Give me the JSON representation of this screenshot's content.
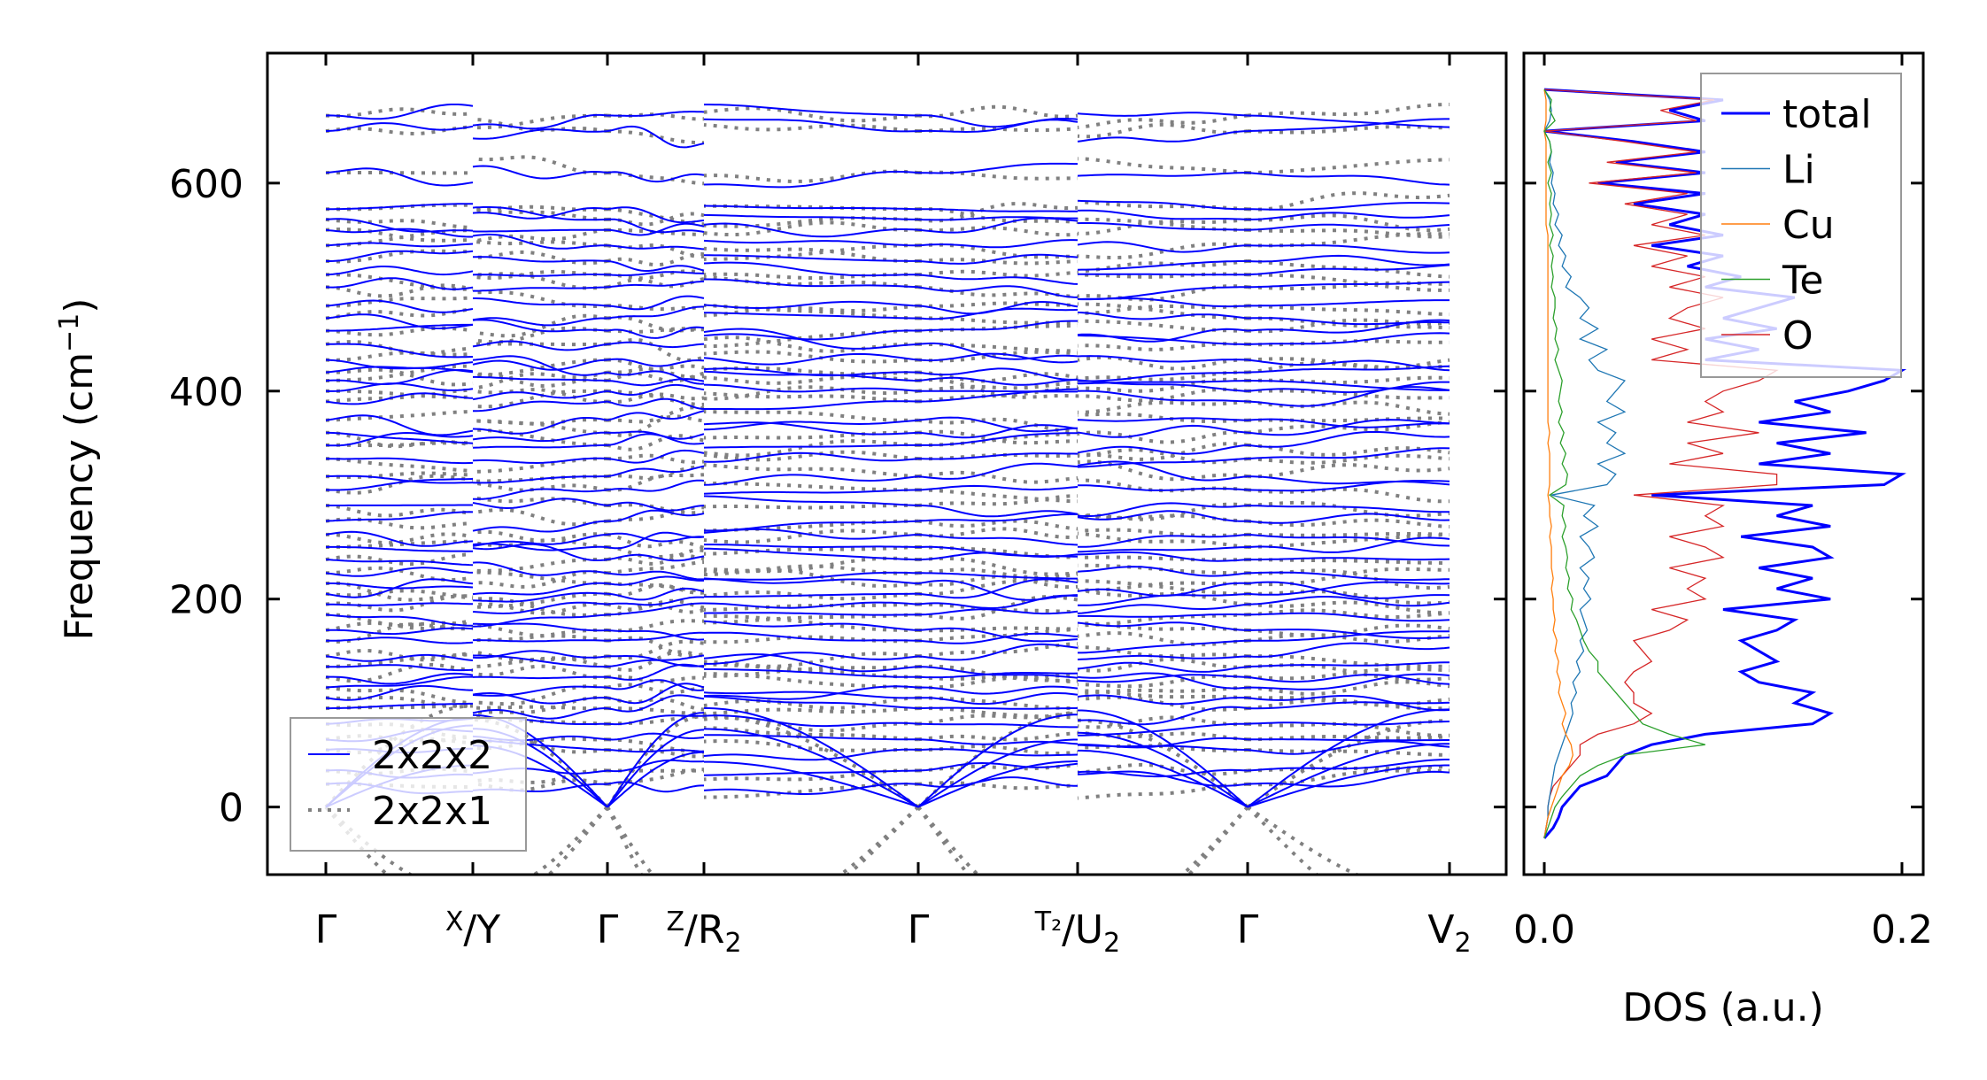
{
  "chart_data": [
    {
      "type": "line",
      "title": "",
      "ylabel": "Frequency (cm⁻¹)",
      "ylabel_parts": {
        "main": "Frequency (cm",
        "sup": "−1",
        "close": ")"
      },
      "ylim": [
        -65,
        725
      ],
      "yticks": [
        0,
        200,
        400,
        600
      ],
      "ytick_labels": [
        "0",
        "200",
        "400",
        "600"
      ],
      "xlim": [
        -66,
        1333
      ],
      "kpoints": [
        {
          "k": 0,
          "label": {
            "top": "",
            "main": "Γ",
            "sub": ""
          }
        },
        {
          "k": 166,
          "label": {
            "top": "X",
            "main": "/Y",
            "sub": ""
          }
        },
        {
          "k": 318,
          "label": {
            "top": "",
            "main": "Γ",
            "sub": ""
          }
        },
        {
          "k": 427,
          "label": {
            "top": "Z",
            "main": "/R",
            "sub": "2"
          }
        },
        {
          "k": 669,
          "label": {
            "top": "",
            "main": "Γ",
            "sub": ""
          }
        },
        {
          "k": 849,
          "label": {
            "top": "T₂",
            "main": "/U",
            "sub": "2"
          }
        },
        {
          "k": 1041,
          "label": {
            "top": "",
            "main": "Γ",
            "sub": ""
          }
        },
        {
          "k": 1269,
          "label": {
            "top": "",
            "main": "V",
            "sub": "2"
          }
        }
      ],
      "gamma_frequencies": [
        0,
        0,
        0,
        22,
        35,
        55,
        65,
        80,
        95,
        105,
        115,
        125,
        135,
        145,
        160,
        170,
        185,
        195,
        205,
        215,
        225,
        238,
        250,
        262,
        275,
        290,
        305,
        318,
        335,
        348,
        360,
        372,
        390,
        400,
        410,
        418,
        430,
        445,
        458,
        470,
        482,
        500,
        512,
        525,
        540,
        555,
        565,
        575,
        610,
        650,
        665
      ],
      "legend": {
        "placement": "lower-left",
        "entries": [
          "2x2x2",
          "2x2x1"
        ]
      },
      "series": [
        {
          "name": "2x2x2",
          "color": "#0000ff",
          "style": "solid"
        },
        {
          "name": "2x2x1",
          "color": "#808080",
          "style": "dotted"
        }
      ]
    },
    {
      "type": "line",
      "xlabel": "DOS (a.u.)",
      "xlim": [
        -0.0114,
        0.2119
      ],
      "xticks": [
        0.0,
        0.2
      ],
      "xtick_labels": [
        "0.0",
        "0.2"
      ],
      "frequency_start": -30,
      "frequency_step": 10,
      "legend": {
        "placement": "top-right",
        "entries": [
          "total",
          "Li",
          "Cu",
          "Te",
          "O"
        ]
      },
      "series": [
        {
          "name": "total",
          "color": "#0000ff",
          "values": [
            0.0,
            0.005,
            0.008,
            0.01,
            0.015,
            0.02,
            0.035,
            0.04,
            0.045,
            0.06,
            0.09,
            0.15,
            0.16,
            0.14,
            0.15,
            0.12,
            0.11,
            0.13,
            0.12,
            0.11,
            0.13,
            0.14,
            0.1,
            0.16,
            0.13,
            0.15,
            0.12,
            0.16,
            0.15,
            0.11,
            0.16,
            0.13,
            0.15,
            0.06,
            0.19,
            0.2,
            0.12,
            0.16,
            0.13,
            0.18,
            0.12,
            0.16,
            0.14,
            0.17,
            0.19,
            0.2,
            0.09,
            0.12,
            0.09,
            0.13,
            0.1,
            0.12,
            0.14,
            0.09,
            0.11,
            0.08,
            0.1,
            0.06,
            0.1,
            0.07,
            0.09,
            0.05,
            0.09,
            0.03,
            0.09,
            0.04,
            0.09,
            0.05,
            0.0,
            0.09,
            0.07,
            0.1,
            0.0
          ]
        },
        {
          "name": "Li",
          "color": "#1f77b4",
          "values": [
            0.0,
            0.001,
            0.002,
            0.002,
            0.003,
            0.004,
            0.005,
            0.006,
            0.008,
            0.01,
            0.012,
            0.014,
            0.016,
            0.015,
            0.018,
            0.016,
            0.02,
            0.018,
            0.022,
            0.02,
            0.024,
            0.022,
            0.02,
            0.026,
            0.022,
            0.025,
            0.02,
            0.028,
            0.025,
            0.02,
            0.03,
            0.022,
            0.028,
            0.004,
            0.035,
            0.04,
            0.03,
            0.045,
            0.035,
            0.04,
            0.03,
            0.045,
            0.035,
            0.04,
            0.045,
            0.03,
            0.025,
            0.035,
            0.02,
            0.03,
            0.02,
            0.025,
            0.02,
            0.012,
            0.015,
            0.01,
            0.012,
            0.008,
            0.01,
            0.006,
            0.008,
            0.005,
            0.006,
            0.004,
            0.005,
            0.003,
            0.004,
            0.003,
            0.0,
            0.003,
            0.004,
            0.003,
            0.0
          ]
        },
        {
          "name": "Cu",
          "color": "#ff7f0e",
          "values": [
            0.0,
            0.001,
            0.002,
            0.004,
            0.006,
            0.008,
            0.01,
            0.014,
            0.016,
            0.015,
            0.012,
            0.01,
            0.012,
            0.01,
            0.008,
            0.009,
            0.007,
            0.008,
            0.006,
            0.007,
            0.005,
            0.006,
            0.005,
            0.005,
            0.004,
            0.005,
            0.004,
            0.004,
            0.004,
            0.003,
            0.004,
            0.003,
            0.003,
            0.002,
            0.003,
            0.003,
            0.003,
            0.003,
            0.002,
            0.003,
            0.002,
            0.002,
            0.002,
            0.002,
            0.002,
            0.002,
            0.002,
            0.002,
            0.002,
            0.002,
            0.002,
            0.002,
            0.002,
            0.002,
            0.002,
            0.002,
            0.002,
            0.002,
            0.002,
            0.001,
            0.001,
            0.001,
            0.001,
            0.001,
            0.001,
            0.001,
            0.001,
            0.001,
            0.0,
            0.001,
            0.001,
            0.001,
            0.0
          ]
        },
        {
          "name": "Te",
          "color": "#2ca02c",
          "values": [
            0.0,
            0.002,
            0.004,
            0.006,
            0.01,
            0.015,
            0.02,
            0.03,
            0.045,
            0.09,
            0.07,
            0.055,
            0.05,
            0.045,
            0.04,
            0.035,
            0.03,
            0.03,
            0.025,
            0.022,
            0.02,
            0.018,
            0.015,
            0.016,
            0.013,
            0.014,
            0.012,
            0.013,
            0.012,
            0.01,
            0.012,
            0.01,
            0.011,
            0.003,
            0.012,
            0.013,
            0.01,
            0.012,
            0.009,
            0.011,
            0.008,
            0.01,
            0.008,
            0.009,
            0.01,
            0.008,
            0.006,
            0.008,
            0.006,
            0.007,
            0.005,
            0.006,
            0.006,
            0.004,
            0.005,
            0.004,
            0.005,
            0.003,
            0.005,
            0.003,
            0.004,
            0.003,
            0.004,
            0.002,
            0.004,
            0.002,
            0.004,
            0.003,
            0.0,
            0.006,
            0.003,
            0.004,
            0.0
          ]
        },
        {
          "name": "O",
          "color": "#d62728",
          "values": [
            0.0,
            0.001,
            0.002,
            0.002,
            0.003,
            0.005,
            0.01,
            0.015,
            0.02,
            0.02,
            0.03,
            0.05,
            0.06,
            0.05,
            0.05,
            0.045,
            0.05,
            0.06,
            0.055,
            0.05,
            0.07,
            0.08,
            0.06,
            0.09,
            0.08,
            0.09,
            0.07,
            0.1,
            0.09,
            0.07,
            0.1,
            0.09,
            0.1,
            0.05,
            0.13,
            0.13,
            0.07,
            0.1,
            0.08,
            0.12,
            0.08,
            0.1,
            0.09,
            0.1,
            0.12,
            0.13,
            0.06,
            0.08,
            0.06,
            0.09,
            0.07,
            0.08,
            0.1,
            0.07,
            0.09,
            0.06,
            0.08,
            0.05,
            0.09,
            0.06,
            0.08,
            0.045,
            0.08,
            0.025,
            0.085,
            0.035,
            0.085,
            0.045,
            0.0,
            0.085,
            0.065,
            0.095,
            0.0
          ]
        }
      ]
    }
  ]
}
